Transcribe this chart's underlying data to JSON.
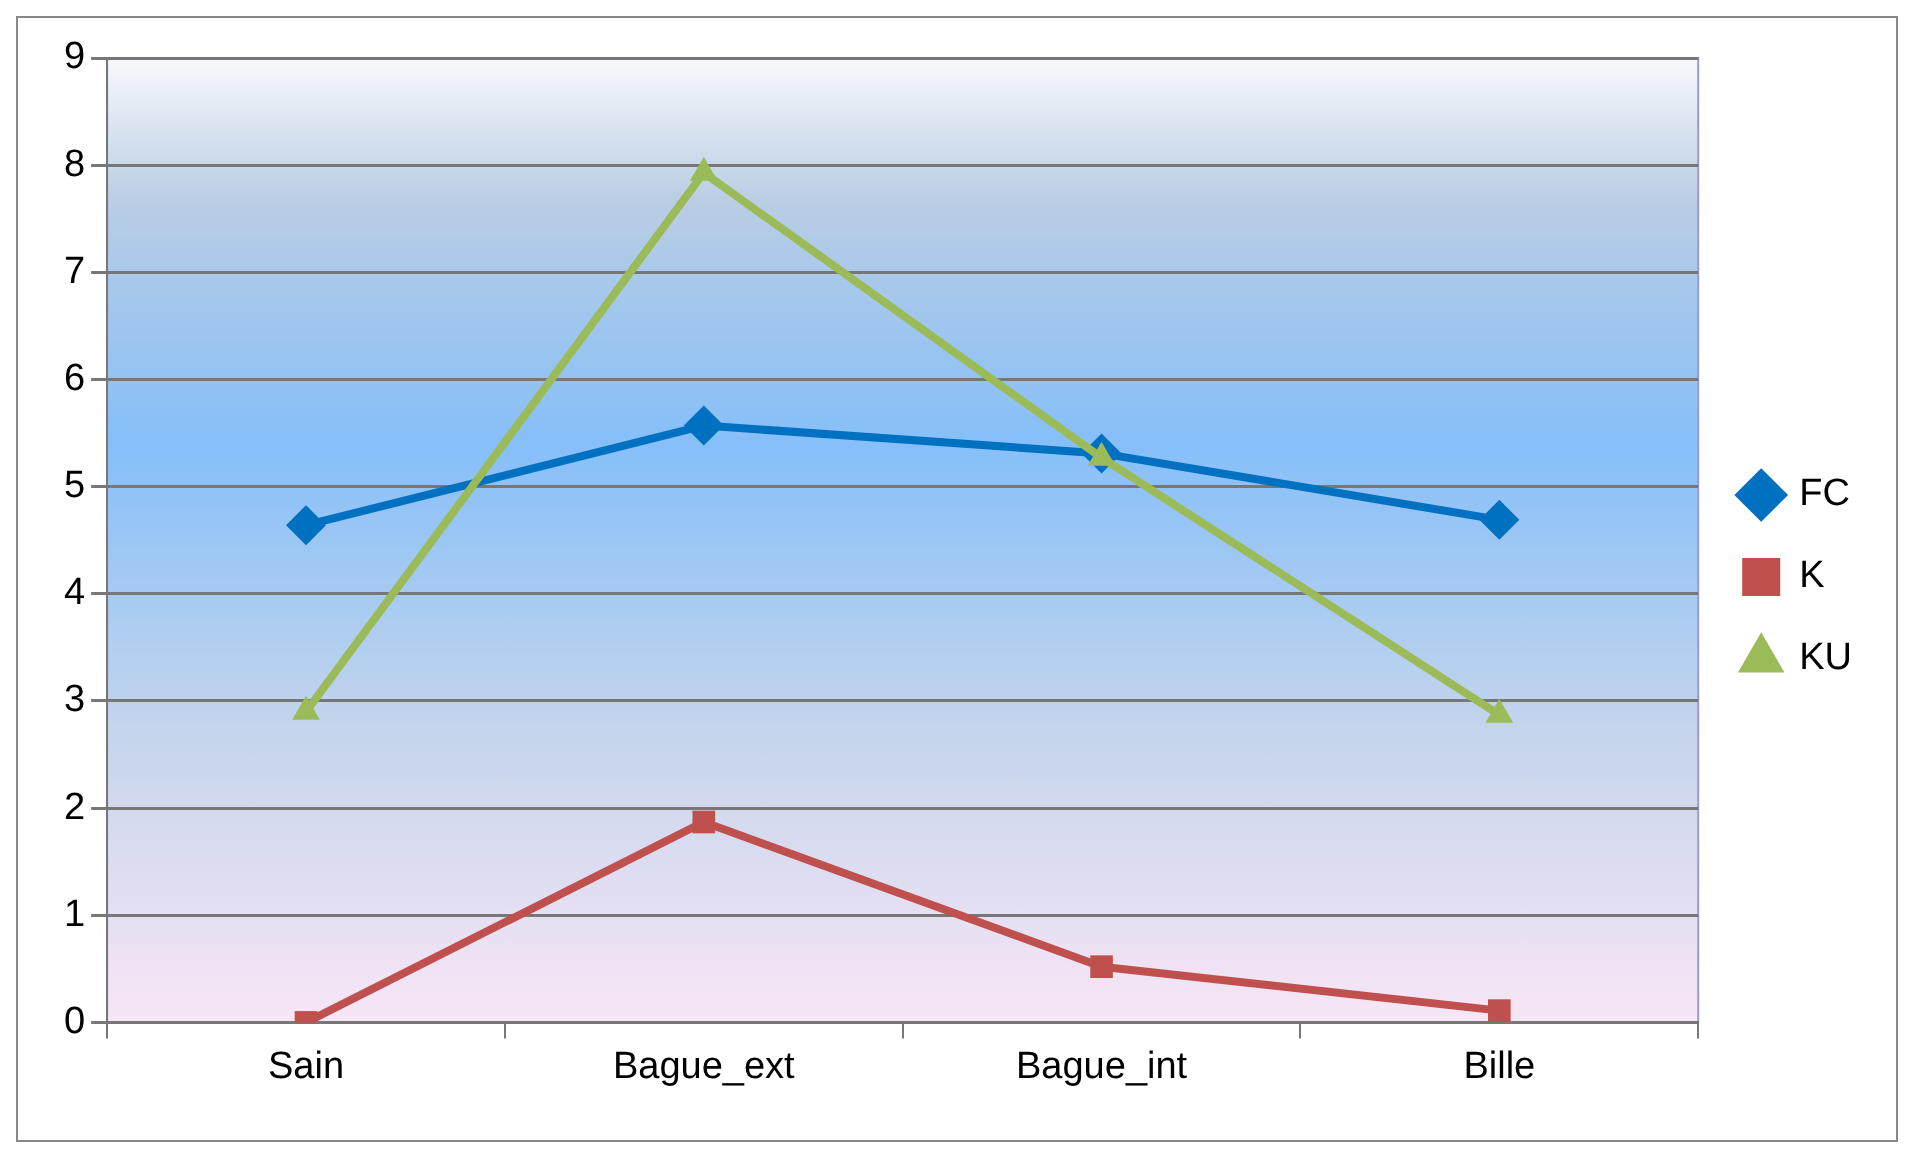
{
  "chart_data": {
    "type": "line",
    "categories": [
      "Sain",
      "Bague_ext",
      "Bague_int",
      "Bille"
    ],
    "series": [
      {
        "name": "FC",
        "color": "#0070c0",
        "marker": "diamond",
        "values": [
          4.64,
          5.57,
          5.31,
          4.69
        ]
      },
      {
        "name": "K",
        "color": "#c0504d",
        "marker": "square",
        "values": [
          0,
          1.87,
          0.52,
          0.11
        ]
      },
      {
        "name": "KU",
        "color": "#9bbb59",
        "marker": "triangle",
        "values": [
          2.9,
          7.93,
          5.27,
          2.87
        ]
      }
    ],
    "ylim": [
      0,
      9
    ],
    "yticks": [
      0,
      1,
      2,
      3,
      4,
      5,
      6,
      7,
      8,
      9
    ],
    "grid": "y",
    "legend": "right",
    "line_style": "solid"
  }
}
